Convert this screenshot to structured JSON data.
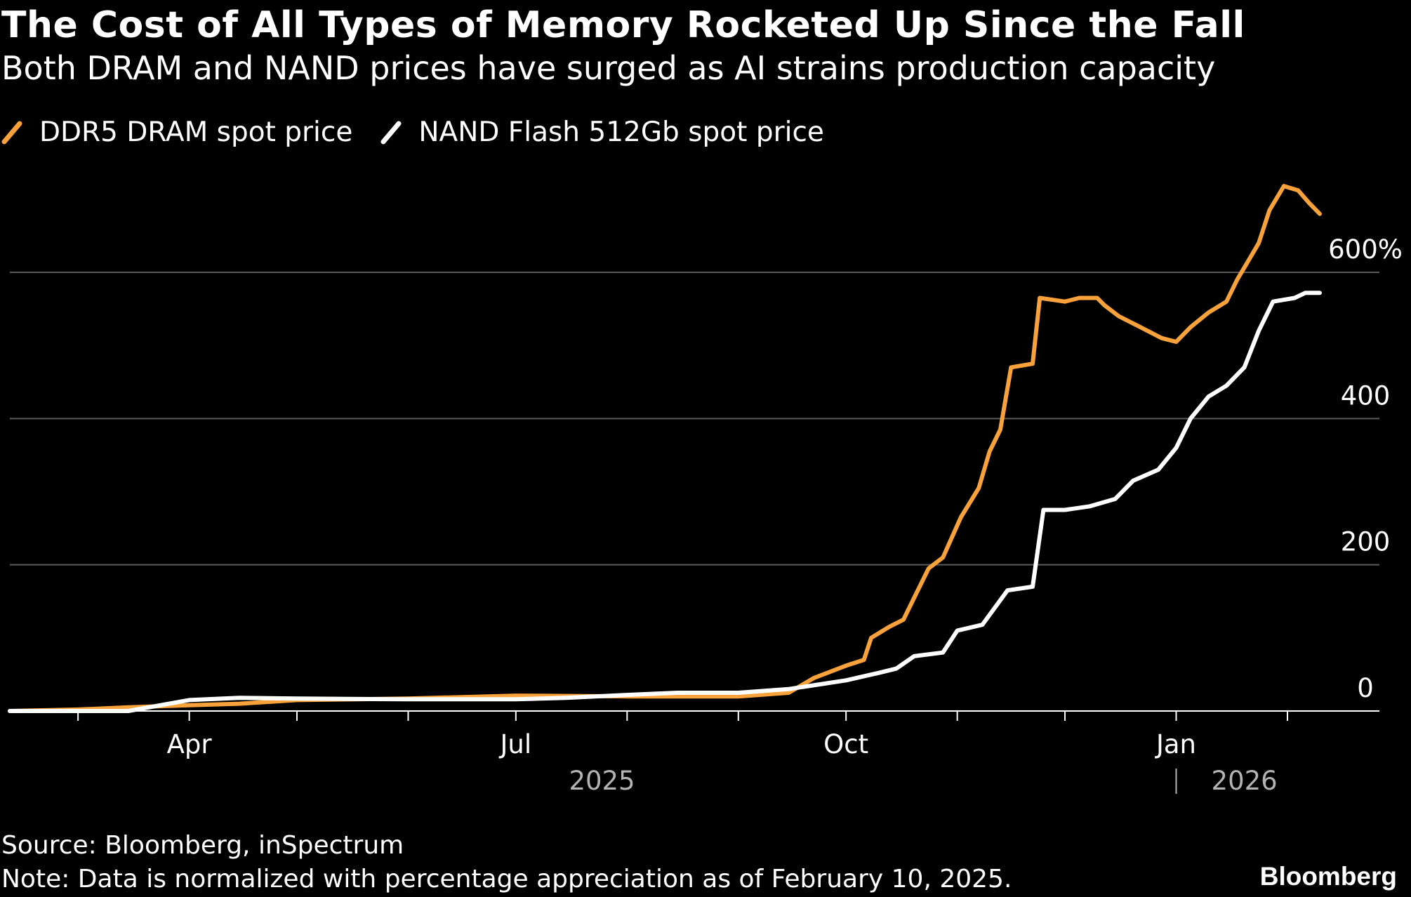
{
  "header": {
    "title": "The Cost of All Types of Memory Rocketed Up Since the Fall",
    "subtitle": "Both DRAM and NAND prices have surged as AI strains production capacity"
  },
  "footer": {
    "source": "Source: Bloomberg, inSpectrum",
    "note": "Note: Data is normalized with percentage appreciation as of February 10, 2025.",
    "brand": "Bloomberg"
  },
  "colors": {
    "background": "#000000",
    "dram": "#f9a13a",
    "nand": "#ffffff",
    "grid": "#5a5a5a",
    "text": "#ffffff",
    "muted": "#b3b3b3"
  },
  "chart_data": {
    "type": "line",
    "title": "The Cost of All Types of Memory Rocketed Up Since the Fall",
    "subtitle": "Both DRAM and NAND prices have surged as AI strains production capacity",
    "xlabel": "",
    "ylabel": "",
    "x_range": [
      "2025-02-10",
      "2026-02-10"
    ],
    "ylim": [
      0,
      600
    ],
    "grid": true,
    "legend_position": "top-left",
    "y_ticks": [
      {
        "value": 0,
        "label": "0"
      },
      {
        "value": 200,
        "label": "200"
      },
      {
        "value": 400,
        "label": "400"
      },
      {
        "value": 600,
        "label": "600%"
      }
    ],
    "x_ticks": [
      {
        "date": "2025-04-01",
        "label": "Apr"
      },
      {
        "date": "2025-07-01",
        "label": "Jul"
      },
      {
        "date": "2025-10-01",
        "label": "Oct"
      },
      {
        "date": "2026-01-01",
        "label": "Jan"
      }
    ],
    "year_labels": [
      {
        "date": "2025-07-25",
        "label": "2025"
      },
      {
        "date": "2026-01-20",
        "label": "2026"
      }
    ],
    "series": [
      {
        "name": "DDR5 DRAM spot price",
        "color": "#f9a13a",
        "points": [
          [
            "2025-02-10",
            0
          ],
          [
            "2025-03-01",
            2
          ],
          [
            "2025-03-15",
            5
          ],
          [
            "2025-04-01",
            8
          ],
          [
            "2025-04-15",
            10
          ],
          [
            "2025-05-01",
            15
          ],
          [
            "2025-06-01",
            17
          ],
          [
            "2025-07-01",
            21
          ],
          [
            "2025-08-01",
            20
          ],
          [
            "2025-09-01",
            20
          ],
          [
            "2025-09-15",
            25
          ],
          [
            "2025-09-22",
            45
          ],
          [
            "2025-10-01",
            62
          ],
          [
            "2025-10-06",
            70
          ],
          [
            "2025-10-08",
            100
          ],
          [
            "2025-10-13",
            115
          ],
          [
            "2025-10-17",
            125
          ],
          [
            "2025-10-20",
            155
          ],
          [
            "2025-10-24",
            195
          ],
          [
            "2025-10-28",
            210
          ],
          [
            "2025-11-02",
            265
          ],
          [
            "2025-11-07",
            305
          ],
          [
            "2025-11-10",
            355
          ],
          [
            "2025-11-13",
            385
          ],
          [
            "2025-11-16",
            470
          ],
          [
            "2025-11-22",
            475
          ],
          [
            "2025-11-24",
            565
          ],
          [
            "2025-12-01",
            560
          ],
          [
            "2025-12-05",
            565
          ],
          [
            "2025-12-10",
            565
          ],
          [
            "2025-12-12",
            555
          ],
          [
            "2025-12-16",
            540
          ],
          [
            "2025-12-22",
            525
          ],
          [
            "2025-12-28",
            510
          ],
          [
            "2026-01-01",
            505
          ],
          [
            "2026-01-05",
            525
          ],
          [
            "2026-01-10",
            545
          ],
          [
            "2026-01-15",
            560
          ],
          [
            "2026-01-18",
            590
          ],
          [
            "2026-01-21",
            615
          ],
          [
            "2026-01-24",
            640
          ],
          [
            "2026-01-27",
            685
          ],
          [
            "2026-01-31",
            718
          ],
          [
            "2026-02-04",
            712
          ],
          [
            "2026-02-07",
            695
          ],
          [
            "2026-02-10",
            680
          ]
        ]
      },
      {
        "name": "NAND Flash 512Gb spot price",
        "color": "#ffffff",
        "points": [
          [
            "2025-02-10",
            0
          ],
          [
            "2025-03-15",
            0
          ],
          [
            "2025-04-01",
            15
          ],
          [
            "2025-04-15",
            18
          ],
          [
            "2025-05-01",
            17
          ],
          [
            "2025-06-01",
            16
          ],
          [
            "2025-07-01",
            16
          ],
          [
            "2025-07-15",
            18
          ],
          [
            "2025-08-01",
            22
          ],
          [
            "2025-08-15",
            25
          ],
          [
            "2025-09-01",
            25
          ],
          [
            "2025-09-15",
            30
          ],
          [
            "2025-10-01",
            42
          ],
          [
            "2025-10-10",
            52
          ],
          [
            "2025-10-15",
            58
          ],
          [
            "2025-10-20",
            75
          ],
          [
            "2025-10-28",
            80
          ],
          [
            "2025-11-01",
            110
          ],
          [
            "2025-11-08",
            118
          ],
          [
            "2025-11-15",
            165
          ],
          [
            "2025-11-22",
            170
          ],
          [
            "2025-11-25",
            275
          ],
          [
            "2025-12-01",
            275
          ],
          [
            "2025-12-08",
            280
          ],
          [
            "2025-12-15",
            290
          ],
          [
            "2025-12-20",
            315
          ],
          [
            "2025-12-27",
            330
          ],
          [
            "2026-01-01",
            360
          ],
          [
            "2026-01-05",
            400
          ],
          [
            "2026-01-10",
            430
          ],
          [
            "2026-01-15",
            445
          ],
          [
            "2026-01-20",
            470
          ],
          [
            "2026-01-24",
            520
          ],
          [
            "2026-01-28",
            560
          ],
          [
            "2026-02-03",
            565
          ],
          [
            "2026-02-06",
            572
          ],
          [
            "2026-02-10",
            572
          ]
        ]
      }
    ]
  }
}
